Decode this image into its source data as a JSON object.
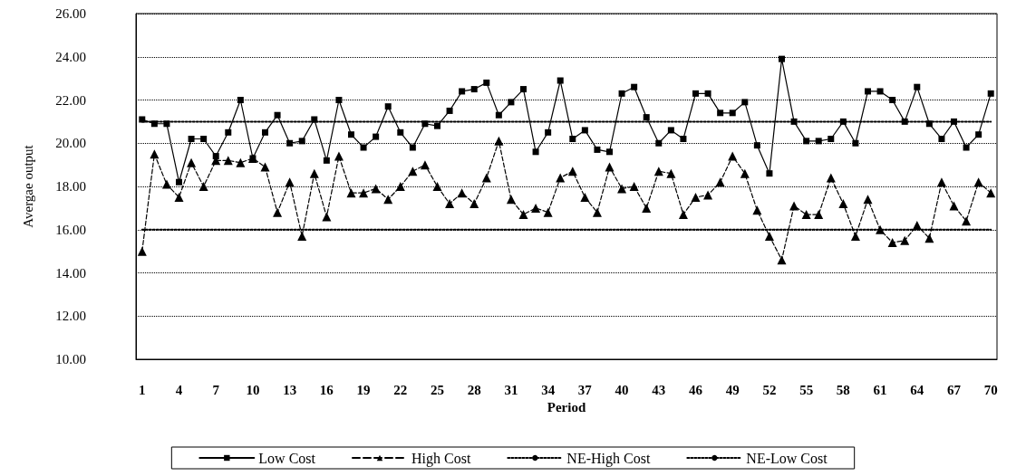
{
  "chart_data": {
    "type": "line",
    "xlabel": "Period",
    "ylabel": "Avergae output",
    "categories": [
      "1",
      null,
      null,
      "4",
      null,
      null,
      "7",
      null,
      null,
      "10",
      null,
      null,
      "13",
      null,
      null,
      "16",
      null,
      null,
      "19",
      null,
      null,
      "22",
      null,
      null,
      "25",
      null,
      null,
      "28",
      null,
      null,
      "31",
      null,
      null,
      "34",
      null,
      null,
      "37",
      null,
      null,
      "40",
      null,
      null,
      "43",
      null,
      null,
      "46",
      null,
      null,
      "49",
      null,
      null,
      "52",
      null,
      null,
      "55",
      null,
      null,
      "58",
      null,
      null,
      "61",
      null,
      null,
      "64",
      null,
      null,
      "67",
      null,
      null,
      "70"
    ],
    "series": [
      {
        "name": "Low Cost",
        "color": "#000000",
        "marker": "square",
        "line_style": "solid",
        "values": [
          21.1,
          20.9,
          20.9,
          18.2,
          20.2,
          20.2,
          19.4,
          20.5,
          22.0,
          19.3,
          20.5,
          21.3,
          20.0,
          20.1,
          21.1,
          19.2,
          22.0,
          20.4,
          19.8,
          20.3,
          21.7,
          20.5,
          19.8,
          20.9,
          20.8,
          21.5,
          22.4,
          22.5,
          22.8,
          21.3,
          21.9,
          22.5,
          19.6,
          20.5,
          22.9,
          20.2,
          20.6,
          19.7,
          19.6,
          22.3,
          22.6,
          21.2,
          20.0,
          20.6,
          20.2,
          22.3,
          22.3,
          21.4,
          21.4,
          21.9,
          19.9,
          18.6,
          23.9,
          21.0,
          20.1,
          20.1,
          20.2,
          21.0,
          20.0,
          22.4,
          22.4,
          22.0,
          21.0,
          22.6,
          20.9,
          20.2,
          21.0,
          19.8,
          20.4,
          22.3
        ]
      },
      {
        "name": "High Cost",
        "color": "#000000",
        "marker": "triangle",
        "line_style": "dashed",
        "values": [
          15.0,
          19.5,
          18.1,
          17.5,
          19.1,
          18.0,
          19.2,
          19.2,
          19.1,
          19.3,
          18.9,
          16.8,
          18.2,
          15.7,
          18.6,
          16.6,
          19.4,
          17.7,
          17.7,
          17.9,
          17.4,
          18.0,
          18.7,
          19.0,
          18.0,
          17.2,
          17.7,
          17.2,
          18.4,
          20.1,
          17.4,
          16.7,
          17.0,
          16.8,
          18.4,
          18.7,
          17.5,
          16.8,
          18.9,
          17.9,
          18.0,
          17.0,
          18.7,
          18.6,
          16.7,
          17.5,
          17.6,
          18.2,
          19.4,
          18.6,
          16.9,
          15.7,
          14.6,
          17.1,
          16.7,
          16.7,
          18.4,
          17.2,
          15.7,
          17.4,
          16.0,
          15.4,
          15.5,
          16.2,
          15.6,
          18.2,
          17.1,
          16.4,
          18.2,
          17.7
        ]
      },
      {
        "name": "NE-High Cost",
        "color": "#000000",
        "marker": "none",
        "line_style": "dotted",
        "values": [
          16,
          16,
          16,
          16,
          16,
          16,
          16,
          16,
          16,
          16,
          16,
          16,
          16,
          16,
          16,
          16,
          16,
          16,
          16,
          16,
          16,
          16,
          16,
          16,
          16,
          16,
          16,
          16,
          16,
          16,
          16,
          16,
          16,
          16,
          16,
          16,
          16,
          16,
          16,
          16,
          16,
          16,
          16,
          16,
          16,
          16,
          16,
          16,
          16,
          16,
          16,
          16,
          16,
          16,
          16,
          16,
          16,
          16,
          16,
          16,
          16,
          16,
          16,
          16,
          16,
          16,
          16,
          16,
          16,
          16
        ]
      },
      {
        "name": "NE-Low Cost",
        "color": "#000000",
        "marker": "none",
        "line_style": "dotted",
        "values": [
          21,
          21,
          21,
          21,
          21,
          21,
          21,
          21,
          21,
          21,
          21,
          21,
          21,
          21,
          21,
          21,
          21,
          21,
          21,
          21,
          21,
          21,
          21,
          21,
          21,
          21,
          21,
          21,
          21,
          21,
          21,
          21,
          21,
          21,
          21,
          21,
          21,
          21,
          21,
          21,
          21,
          21,
          21,
          21,
          21,
          21,
          21,
          21,
          21,
          21,
          21,
          21,
          21,
          21,
          21,
          21,
          21,
          21,
          21,
          21,
          21,
          21,
          21,
          21,
          21,
          21,
          21,
          21,
          21,
          21
        ]
      }
    ],
    "ylim": [
      10,
      26
    ],
    "yticks": [
      {
        "value": 10,
        "label": "10.00"
      },
      {
        "value": 12,
        "label": "12.00"
      },
      {
        "value": 14,
        "label": "14.00"
      },
      {
        "value": 16,
        "label": "16.00"
      },
      {
        "value": 18,
        "label": "18.00"
      },
      {
        "value": 20,
        "label": "20.00"
      },
      {
        "value": 22,
        "label": "22.00"
      },
      {
        "value": 24,
        "label": "24.00"
      },
      {
        "value": 26,
        "label": "26.00"
      }
    ],
    "grid": "y",
    "legend": "bottom"
  }
}
